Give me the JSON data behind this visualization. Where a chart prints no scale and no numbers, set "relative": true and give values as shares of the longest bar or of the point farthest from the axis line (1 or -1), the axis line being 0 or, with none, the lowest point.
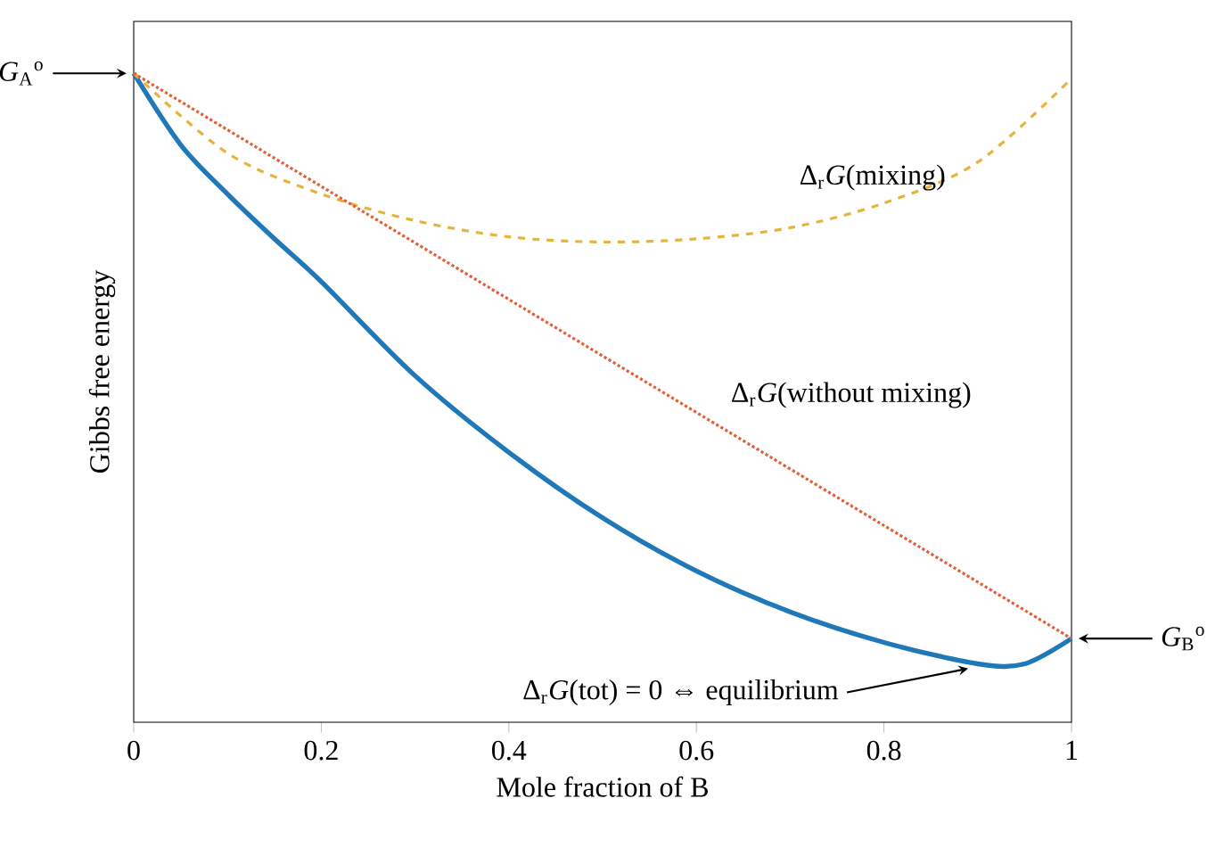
{
  "chart_data": {
    "type": "line",
    "relative": true,
    "xlabel": "Mole fraction of B",
    "ylabel": "Gibbs free energy",
    "xlim": [
      0,
      1
    ],
    "xticks": [
      0,
      0.2,
      0.4,
      0.6,
      0.8,
      1
    ],
    "series": [
      {
        "color": "#1f78b8",
        "line_style": "solid",
        "x": [
          0,
          0.05,
          0.1,
          0.15,
          0.2,
          0.3,
          0.4,
          0.5,
          0.6,
          0.7,
          0.8,
          0.9,
          0.95,
          1
        ],
        "values": [
          1,
          0.89,
          0.814,
          0.745,
          0.679,
          0.534,
          0.416,
          0.315,
          0.233,
          0.17,
          0.123,
          0.09,
          0.09,
          0.129
        ]
      },
      {
        "name": "Δ$_{r}$*G*(mixing)",
        "color": "#e6b43c",
        "line_style": "dashed",
        "x": [
          0,
          0.1,
          0.2,
          0.3,
          0.4,
          0.5,
          0.6,
          0.7,
          0.8,
          0.9,
          1
        ],
        "values": [
          1,
          0.877,
          0.814,
          0.773,
          0.748,
          0.74,
          0.745,
          0.762,
          0.8,
          0.863,
          0.992
        ]
      },
      {
        "name": "Δ$_{r}$*G*(without mixing)",
        "color": "#e0603a",
        "line_style": "dotted",
        "x": [
          0,
          1
        ],
        "values": [
          1,
          0.129
        ]
      }
    ],
    "annotations": [
      {
        "text": "*G*$_{A}$$^{o}$",
        "x": 0,
        "y": 1
      },
      {
        "text": "*G*$_{B}$$^{o}$",
        "x": 1,
        "y": 0.129
      },
      "Δ$_{r}$*G*(tot) = 0 ⇔ equilibrium"
    ]
  }
}
